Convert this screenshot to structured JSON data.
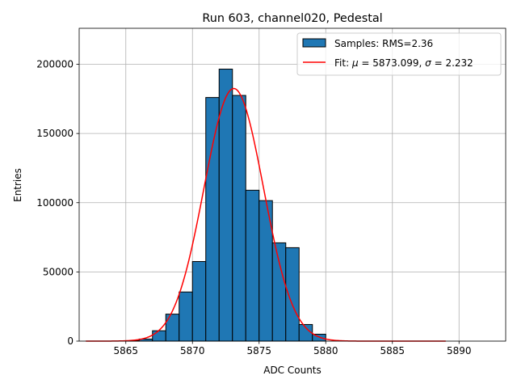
{
  "chart_data": {
    "type": "bar",
    "title": "Run 603, channel020, Pedestal",
    "xlabel": "ADC Counts",
    "ylabel": "Entries",
    "xlim": [
      5861.5,
      5893.5
    ],
    "ylim": [
      0,
      226000
    ],
    "xticks": [
      5865,
      5870,
      5875,
      5880,
      5885,
      5890
    ],
    "yticks": [
      0,
      50000,
      100000,
      150000,
      200000
    ],
    "grid": true,
    "legend_position": "top-right",
    "histogram": {
      "name": "Samples: RMS=2.36",
      "color": "#1f77b4",
      "bin_edges": [
        5865,
        5866,
        5867,
        5868,
        5869,
        5870,
        5871,
        5872,
        5873,
        5874,
        5875,
        5876,
        5877,
        5878,
        5879,
        5880
      ],
      "values": [
        300,
        1500,
        7500,
        19500,
        35500,
        57500,
        176000,
        196500,
        177500,
        109000,
        101500,
        71000,
        67500,
        12000,
        5000
      ]
    },
    "fit": {
      "name": "Fit: μ = 5873.099, σ = 2.232",
      "label_prefix": "Fit: ",
      "mu_symbol": "μ",
      "mu_text": " = 5873.099, ",
      "sigma_symbol": "σ",
      "sigma_text": " = 2.232",
      "color": "#ff0000",
      "mu": 5873.099,
      "sigma": 2.232,
      "amplitude": 182500,
      "x_range": [
        5862,
        5889
      ]
    }
  }
}
